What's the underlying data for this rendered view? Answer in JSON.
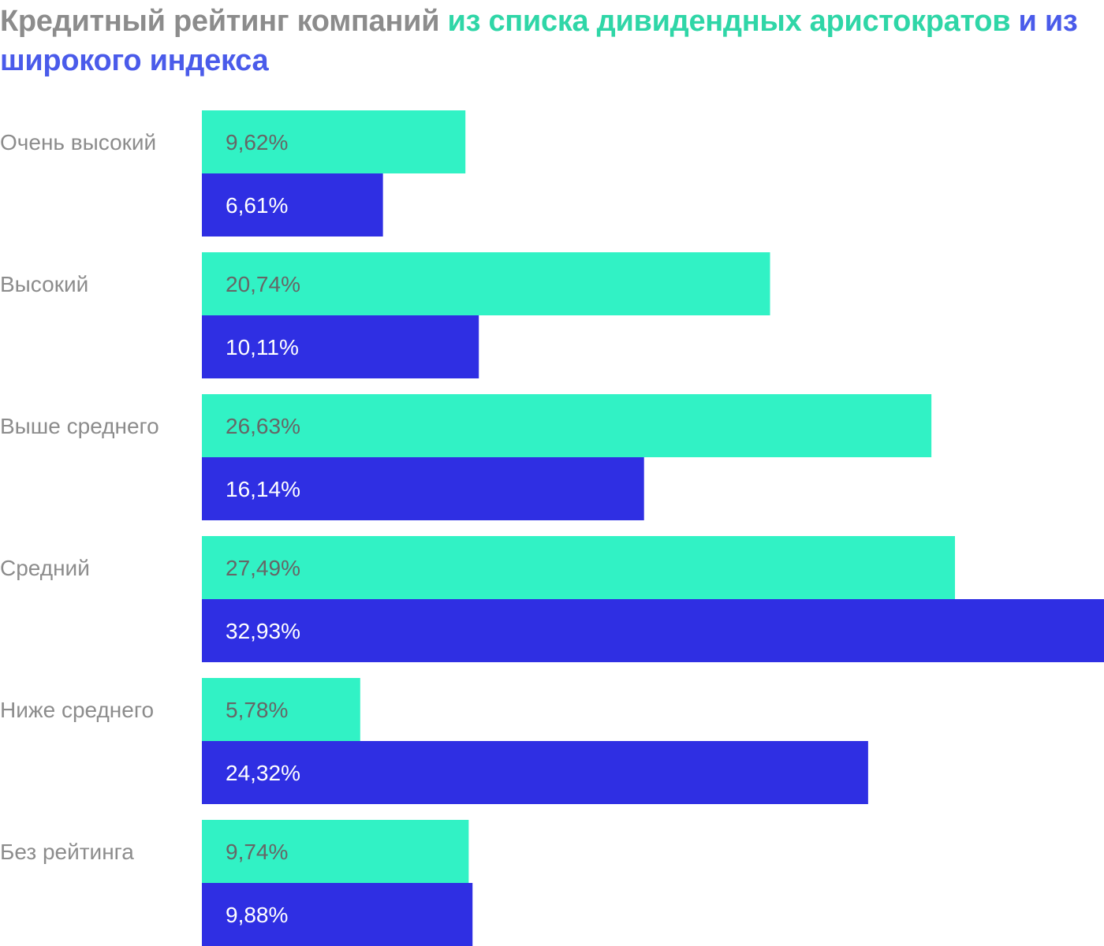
{
  "title": {
    "part1": "Кредитный рейтинг компаний ",
    "part2": "из списка дивидендных аристократов",
    "part3": " и из широкого индекса"
  },
  "colors": {
    "title_gray": "#8c8c8c",
    "series1": "#31f2c5",
    "series1_title": "#2fd6a7",
    "series2": "#2f2fe3",
    "series2_title": "#4a5bea",
    "label_on_series1": "#666666",
    "label_on_series2": "#ffffff"
  },
  "chart_data": {
    "type": "bar",
    "orientation": "horizontal",
    "categories": [
      "Очень высокий",
      "Высокий",
      "Выше среднего",
      "Средний",
      "Ниже среднего",
      "Без рейтинга"
    ],
    "series": [
      {
        "values": [
          9.62,
          20.74,
          26.63,
          27.49,
          5.78,
          9.74
        ],
        "labels": [
          "9,62%",
          "20,74%",
          "26,63%",
          "27,49%",
          "5,78%",
          "9,74%"
        ]
      },
      {
        "values": [
          6.61,
          10.11,
          16.14,
          32.93,
          24.32,
          9.88
        ],
        "labels": [
          "6,61%",
          "10,11%",
          "16,14%",
          "32,93%",
          "24,32%",
          "9,88%"
        ]
      }
    ],
    "xlim": [
      0,
      32.93
    ],
    "grid": false,
    "legend": "none"
  }
}
